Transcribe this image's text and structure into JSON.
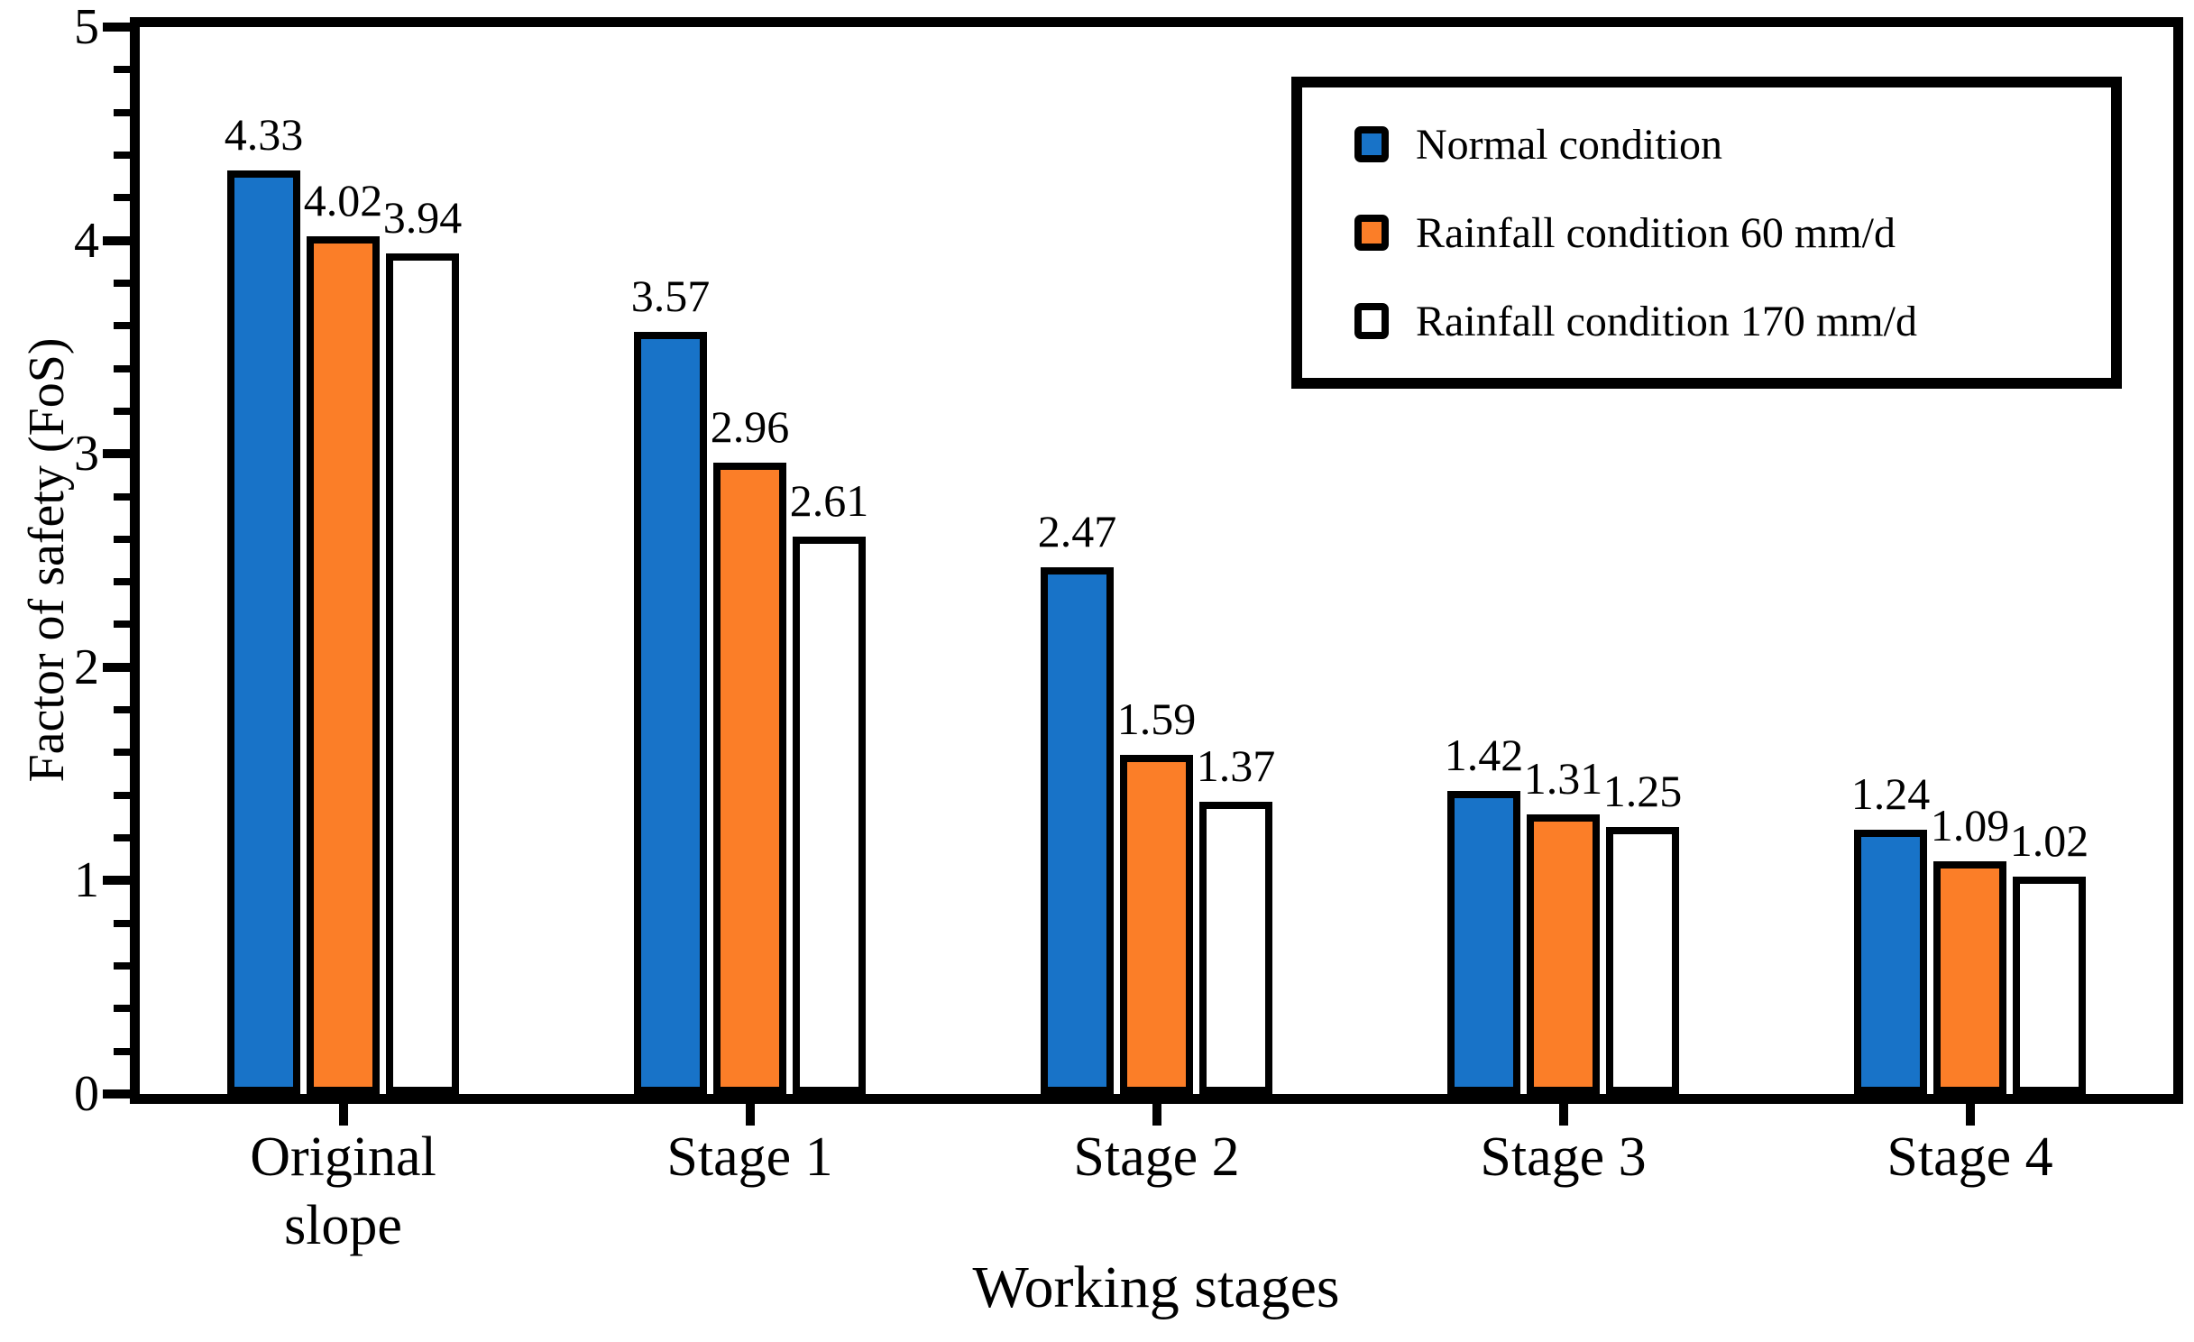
{
  "chart_data": {
    "type": "bar",
    "title": "",
    "xlabel": "Working stages",
    "ylabel": "Factor of safety (FoS)",
    "ylim": [
      0,
      5
    ],
    "yticks": [
      "0",
      "1",
      "2",
      "3",
      "4",
      "5"
    ],
    "minor_tick_step": 0.2,
    "grid": "off",
    "legend_position": "top-right-inside",
    "value_labels_shown": true,
    "bar_outline_color": "#000000",
    "categories": [
      "Original slope",
      "Stage 1",
      "Stage 2",
      "Stage 3",
      "Stage 4"
    ],
    "category_tick_lines": [
      [
        "Original",
        "slope"
      ],
      [
        "Stage 1"
      ],
      [
        "Stage 2"
      ],
      [
        "Stage 3"
      ],
      [
        "Stage 4"
      ]
    ],
    "series": [
      {
        "name": "Normal condition",
        "color": "#1873C8",
        "values": [
          4.33,
          3.57,
          2.47,
          1.42,
          1.24
        ]
      },
      {
        "name": "Rainfall condition 60 mm/d",
        "color": "#FB7E28",
        "values": [
          4.02,
          2.96,
          1.59,
          1.31,
          1.09
        ]
      },
      {
        "name": "Rainfall condition 170 mm/d",
        "color": "#FFFFFF",
        "values": [
          3.94,
          2.61,
          1.37,
          1.25,
          1.02
        ]
      }
    ],
    "value_label_format": "0.00"
  }
}
